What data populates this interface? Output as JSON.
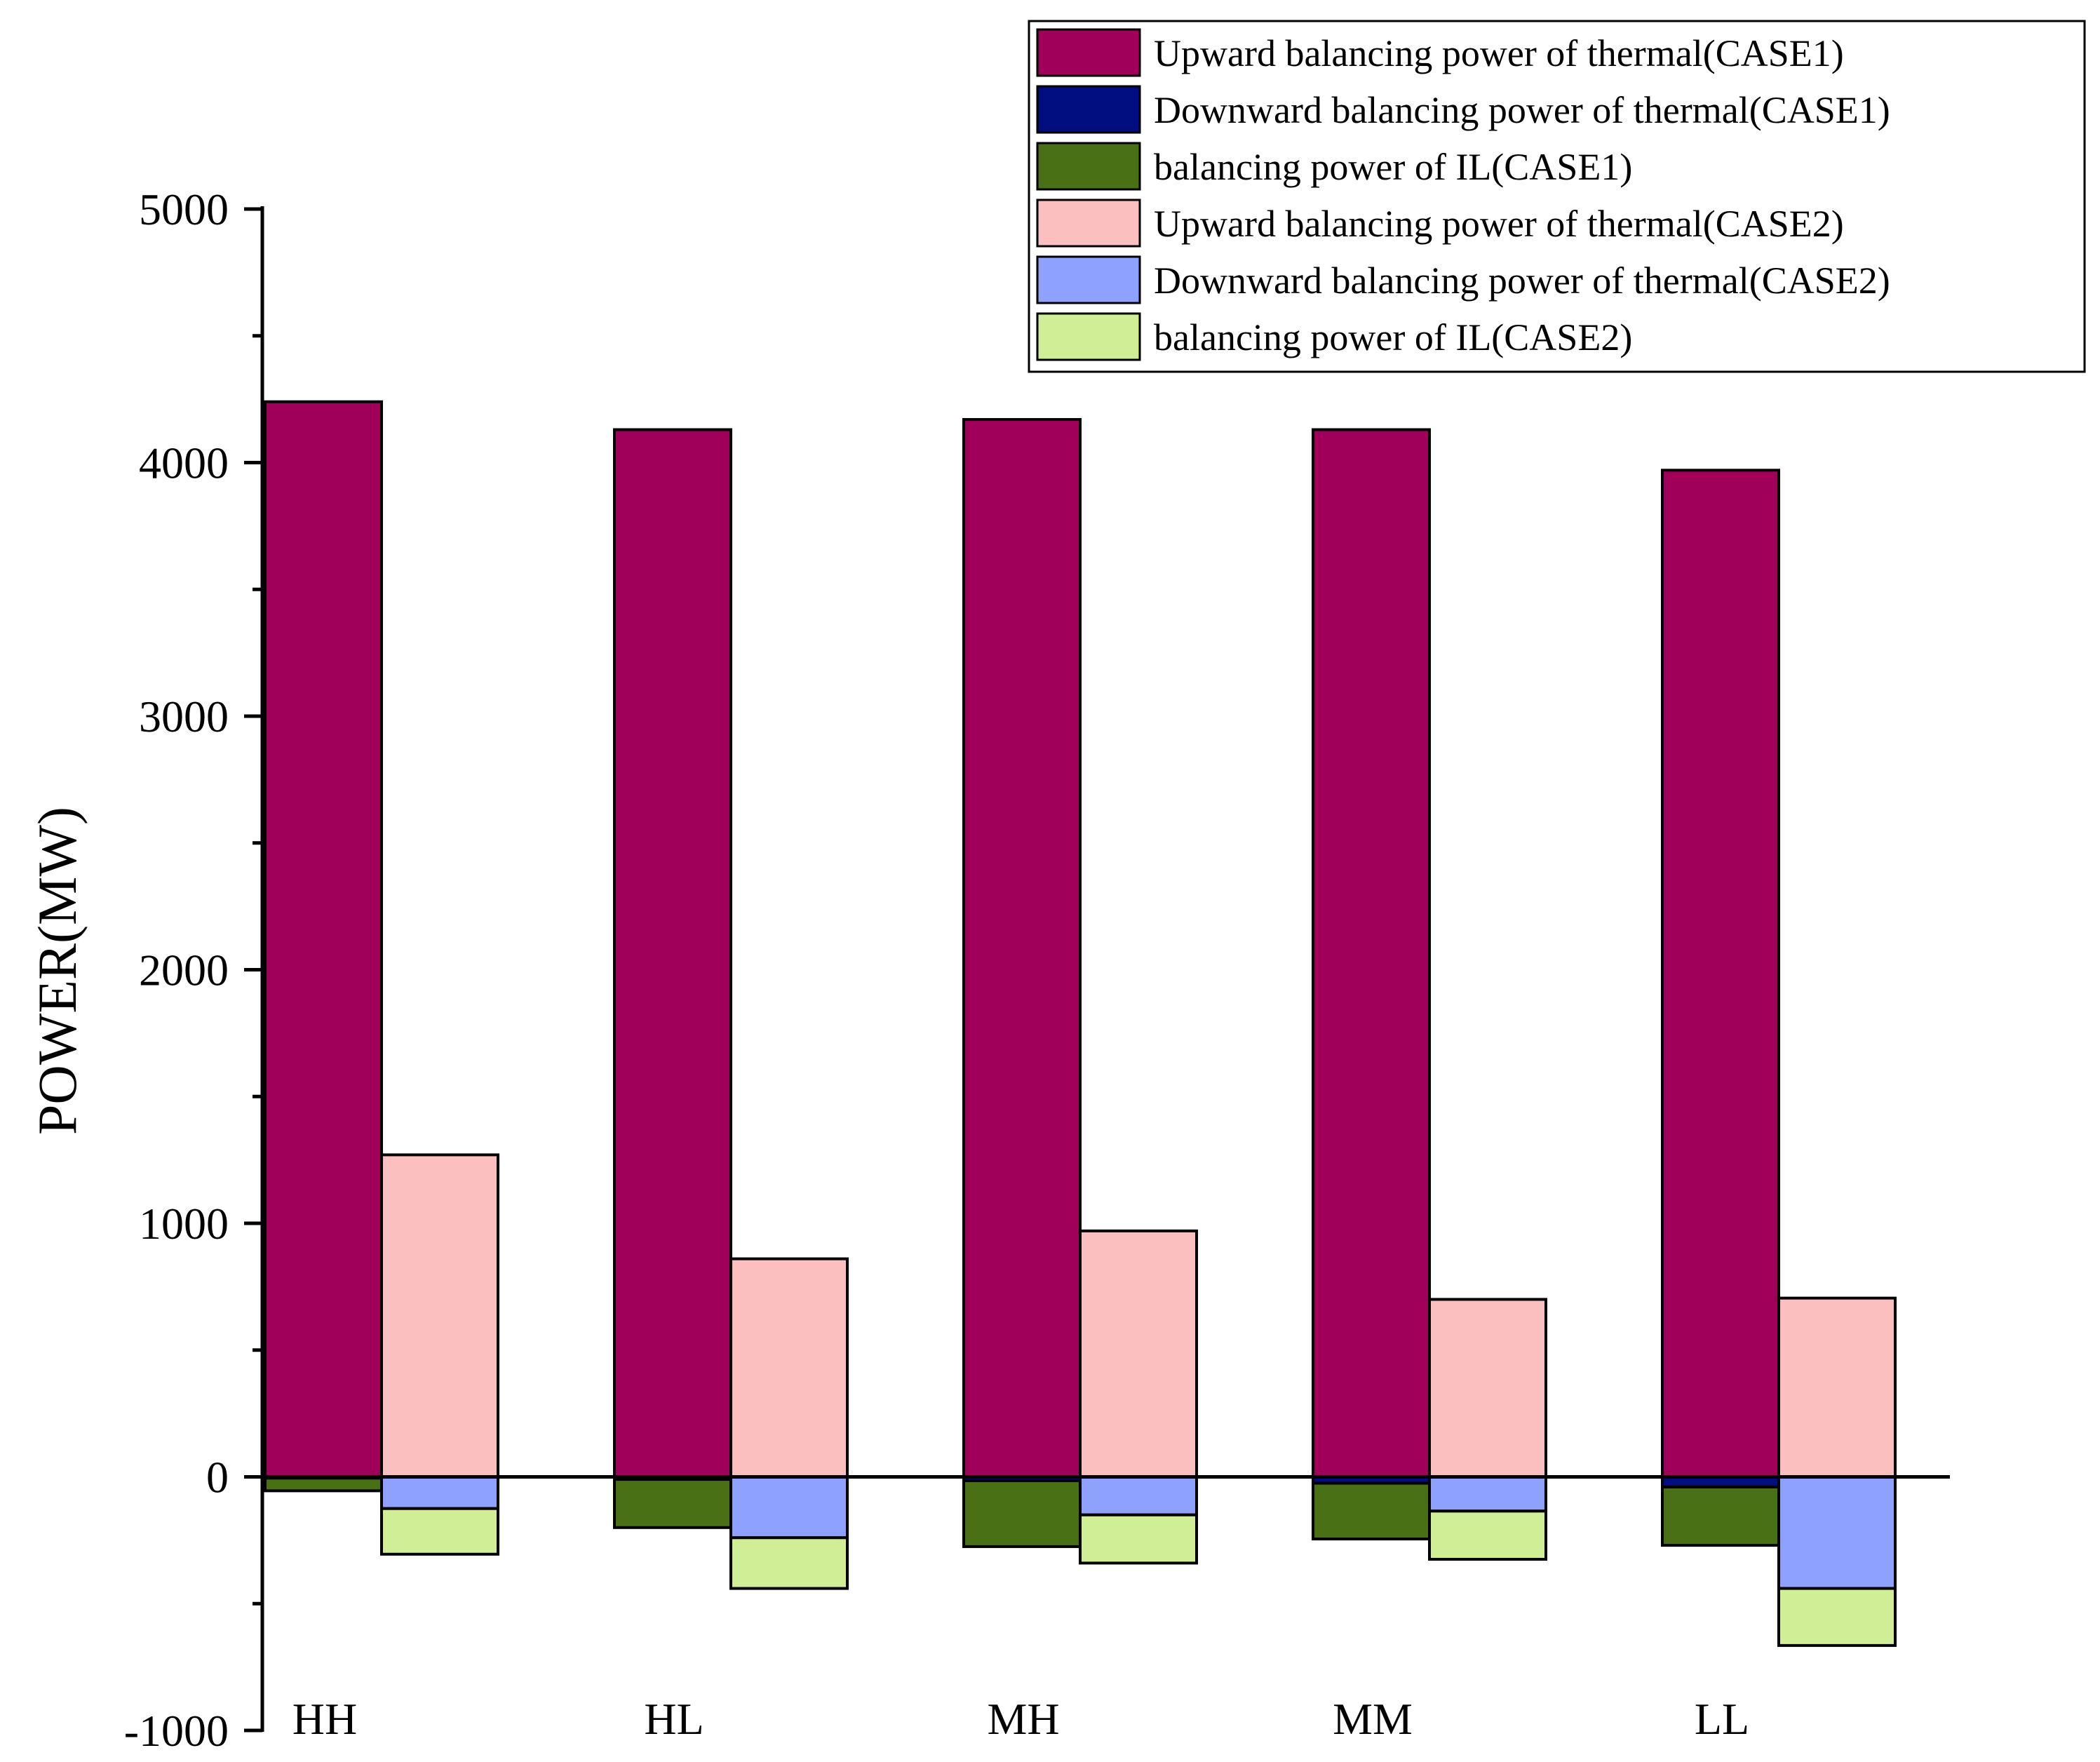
{
  "chart_data": {
    "type": "bar",
    "subtype": "stacked-grouped",
    "title": "",
    "xlabel": "",
    "ylabel": "POWER(MW)",
    "ylim": [
      -1000,
      5000
    ],
    "yticks": [
      -1000,
      0,
      1000,
      2000,
      3000,
      4000,
      5000
    ],
    "ytick_labels": [
      "-1000",
      "0",
      "1000",
      "2000",
      "3000",
      "4000",
      "5000"
    ],
    "grid": false,
    "legend_position": "top-right",
    "categories": [
      "HH",
      "HL",
      "MH",
      "MM",
      "LL"
    ],
    "groups": [
      "CASE1",
      "CASE2"
    ],
    "series": [
      {
        "name": "Upward balancing power of thermal(CASE1)",
        "group": "CASE1",
        "color": "#A0005A",
        "values": [
          4240,
          4130,
          4170,
          4130,
          3970
        ]
      },
      {
        "name": "Downward balancing power of thermal(CASE1)",
        "group": "CASE1",
        "color": "#000E80",
        "values": [
          -5,
          -10,
          -15,
          -25,
          -40
        ]
      },
      {
        "name": "balancing power of IL(CASE1)",
        "group": "CASE1",
        "color": "#4A7016",
        "values": [
          -50,
          -190,
          -260,
          -220,
          -230
        ]
      },
      {
        "name": "Upward balancing power of thermal(CASE2)",
        "group": "CASE2",
        "color": "#FBBFBF",
        "values": [
          1270,
          860,
          970,
          700,
          705
        ]
      },
      {
        "name": "Downward balancing power of thermal(CASE2)",
        "group": "CASE2",
        "color": "#8EA1FD",
        "values": [
          -125,
          -240,
          -150,
          -135,
          -440
        ]
      },
      {
        "name": "balancing power of IL(CASE2)",
        "group": "CASE2",
        "color": "#CFEE96",
        "values": [
          -180,
          -200,
          -190,
          -190,
          -225
        ]
      }
    ]
  }
}
